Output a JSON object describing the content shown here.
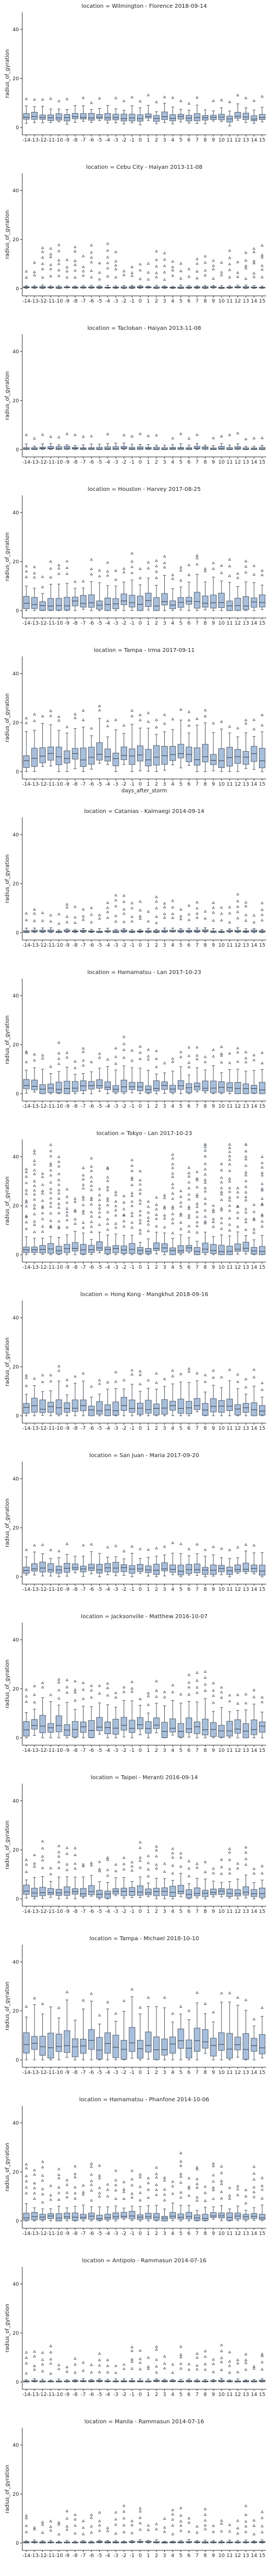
{
  "chart_data": {
    "type": "box",
    "shared_x": true,
    "shared_y": true,
    "xlabel": "days_after_storm",
    "ylabel": "radius_of_gyration",
    "x_categories": [
      "-14",
      "-13",
      "-12",
      "-11",
      "-10",
      "-9",
      "-8",
      "-7",
      "-6",
      "-5",
      "-4",
      "-3",
      "-2",
      "-1",
      "0",
      "1",
      "2",
      "3",
      "4",
      "5",
      "6",
      "7",
      "8",
      "9",
      "10",
      "11",
      "12",
      "13",
      "14",
      "15"
    ],
    "y_ticks": [
      "0",
      "20",
      "40"
    ],
    "ylim": [
      -3,
      47
    ],
    "colors": {
      "box_fill": "#a8bfdc",
      "box_edge": "#505a66",
      "median": "#3a3f46",
      "axis": "#333333"
    },
    "panels": [
      {
        "title": "location = Wilmington - Florence 2018-09-14",
        "style": "small",
        "med": 4,
        "spread": 1.5,
        "outliers": 1
      },
      {
        "title": "location = Cebu City - Haiyan 2013-11-08",
        "style": "flat",
        "med": 0.4,
        "spread": 0.3,
        "outliers": 5
      },
      {
        "title": "location = Tacloban - Haiyan 2013-11-08",
        "style": "flat",
        "med": 0.4,
        "spread": 0.6,
        "outliers": 1
      },
      {
        "title": "location = Houston - Harvey 2017-08-25",
        "style": "wide",
        "med": 3,
        "spread": 3,
        "outliers": 3
      },
      {
        "title": "location = Tampa - Irma 2017-09-11",
        "style": "wide",
        "med": 6,
        "spread": 4,
        "outliers": 2
      },
      {
        "title": "location = Catanias - Kalmaegi 2014-09-14",
        "style": "flat",
        "med": 0.5,
        "spread": 0.4,
        "outliers": 4
      },
      {
        "title": "location = Hamamatsu - Lan 2017-10-23",
        "style": "wide",
        "med": 2.5,
        "spread": 2.5,
        "outliers": 3
      },
      {
        "title": "location = Tokyo - Lan 2017-10-23",
        "style": "dense",
        "med": 2,
        "spread": 2,
        "outliers": 14
      },
      {
        "title": "location = Hong Kong - Mangkhut 2018-09-16",
        "style": "wide",
        "med": 3,
        "spread": 3,
        "outliers": 2
      },
      {
        "title": "location = San Juan - Maria 2017-09-20",
        "style": "small",
        "med": 3,
        "spread": 2,
        "outliers": 1
      },
      {
        "title": "location = Jacksonville - Matthew 2016-10-07",
        "style": "wide",
        "med": 4,
        "spread": 3.5,
        "outliers": 3
      },
      {
        "title": "location = Taipei - Meranti 2016-09-14",
        "style": "wide",
        "med": 2.5,
        "spread": 2,
        "outliers": 4
      },
      {
        "title": "location = Tampa - Michael 2018-10-10",
        "style": "wide",
        "med": 6,
        "spread": 5,
        "outliers": 1
      },
      {
        "title": "location = Hamamatsu - Phanfone 2014-10-06",
        "style": "wide",
        "med": 1.5,
        "spread": 1.5,
        "outliers": 6
      },
      {
        "title": "location = Antipolo - Rammasun 2014-07-16",
        "style": "flat",
        "med": 0.3,
        "spread": 0.3,
        "outliers": 4
      },
      {
        "title": "location = Manila - Rammasun 2014-07-16",
        "style": "flat",
        "med": 0.3,
        "spread": 0.3,
        "outliers": 4
      }
    ]
  }
}
